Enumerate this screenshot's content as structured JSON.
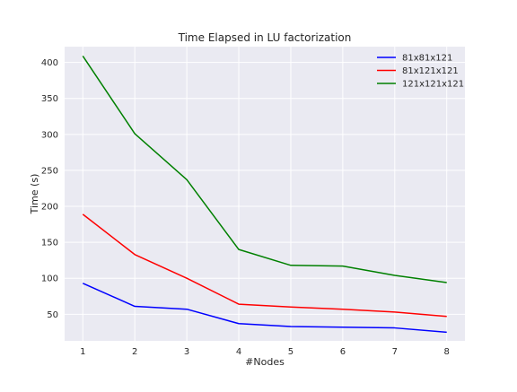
{
  "chart_data": {
    "type": "line",
    "title": "Time Elapsed in LU factorization",
    "xlabel": "#Nodes",
    "ylabel": "Time (s)",
    "x": [
      1,
      2,
      3,
      4,
      5,
      6,
      7,
      8
    ],
    "xlim": [
      0.65,
      8.35
    ],
    "ylim": [
      13,
      422
    ],
    "xticks": [
      1,
      2,
      3,
      4,
      5,
      6,
      7,
      8
    ],
    "yticks": [
      50,
      100,
      150,
      200,
      250,
      300,
      350,
      400
    ],
    "grid": true,
    "background": "#eaeaf2",
    "legend_position": "top-right",
    "series": [
      {
        "name": "81x81x121",
        "color": "#0000ff",
        "values": [
          93,
          61,
          57,
          37,
          33,
          32,
          31,
          25
        ]
      },
      {
        "name": "81x121x121",
        "color": "#ff0000",
        "values": [
          189,
          133,
          100,
          64,
          60,
          57,
          53,
          47
        ]
      },
      {
        "name": "121x121x121",
        "color": "#008000",
        "values": [
          409,
          301,
          237,
          140,
          118,
          117,
          104,
          94
        ]
      }
    ]
  }
}
